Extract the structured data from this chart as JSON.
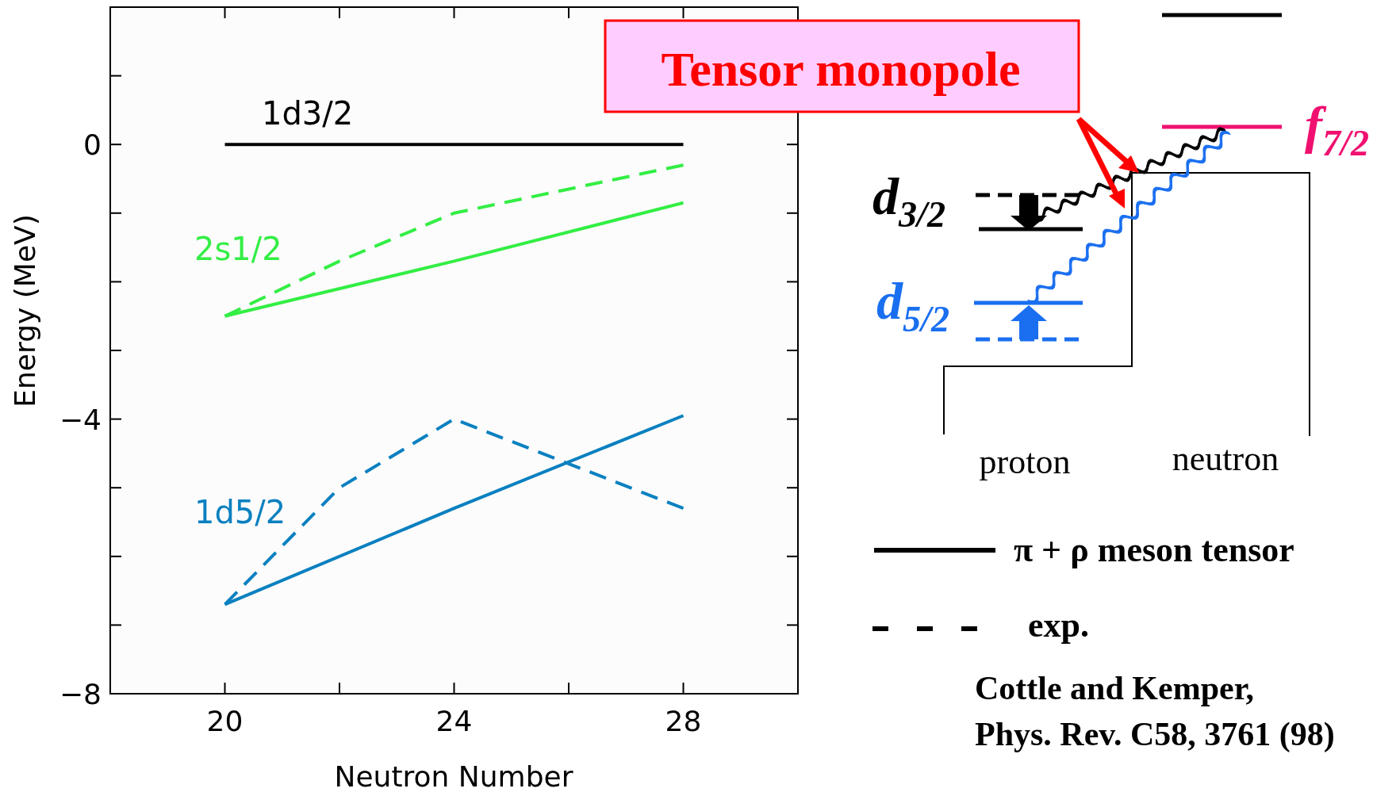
{
  "chart_data": {
    "type": "line",
    "xlabel": "Neutron Number",
    "ylabel": "Energy (MeV)",
    "xlim": [
      18,
      30
    ],
    "xticks": [
      20,
      {
        "value": 22,
        "label": null
      },
      24,
      {
        "value": 26,
        "label": null
      },
      28
    ],
    "ylim": [
      -8,
      2
    ],
    "yticks": [
      -8,
      {
        "value": -7,
        "label": null
      },
      {
        "value": -6,
        "label": null
      },
      {
        "value": -5,
        "label": null
      },
      -4,
      {
        "value": -3,
        "label": null
      },
      {
        "value": -2,
        "label": null
      },
      {
        "value": -1,
        "label": null
      },
      0,
      {
        "value": 1,
        "label": null
      }
    ],
    "marker": "none",
    "series": [
      {
        "name": "1d3/2",
        "color": "#000000",
        "x": [
          20,
          28
        ],
        "values": [
          0,
          0
        ],
        "line_style": "solid"
      },
      {
        "name": "2s1/2",
        "color": "#33ee44",
        "x": [
          20,
          24,
          28
        ],
        "values": [
          -2.5,
          -1.7,
          -0.85
        ],
        "line_style": "solid"
      },
      {
        "color": "#33ee44",
        "x": [
          20,
          22,
          24,
          28
        ],
        "values": [
          -2.5,
          -1.7,
          -1.0,
          -0.3
        ],
        "line_style": "dashed"
      },
      {
        "name": "1d5/2",
        "color": "#0a80c0",
        "x": [
          20,
          24,
          28
        ],
        "values": [
          -6.7,
          -5.3,
          -3.95
        ],
        "line_style": "solid"
      },
      {
        "color": "#0a80c0",
        "x": [
          20,
          22,
          24,
          28
        ],
        "values": [
          -6.7,
          -5.0,
          -4.0,
          -5.3
        ],
        "line_style": "dashed"
      }
    ],
    "annotations": [
      "Tensor monopole",
      "d$_{3/2}$",
      "d$_{5/2}$",
      "f$_{7/2}$",
      "proton",
      "neutron",
      "π + ρ  meson tensor",
      "exp.",
      "Cottle and Kemper,",
      "Phys. Rev. C58, 3761 (98)"
    ]
  }
}
